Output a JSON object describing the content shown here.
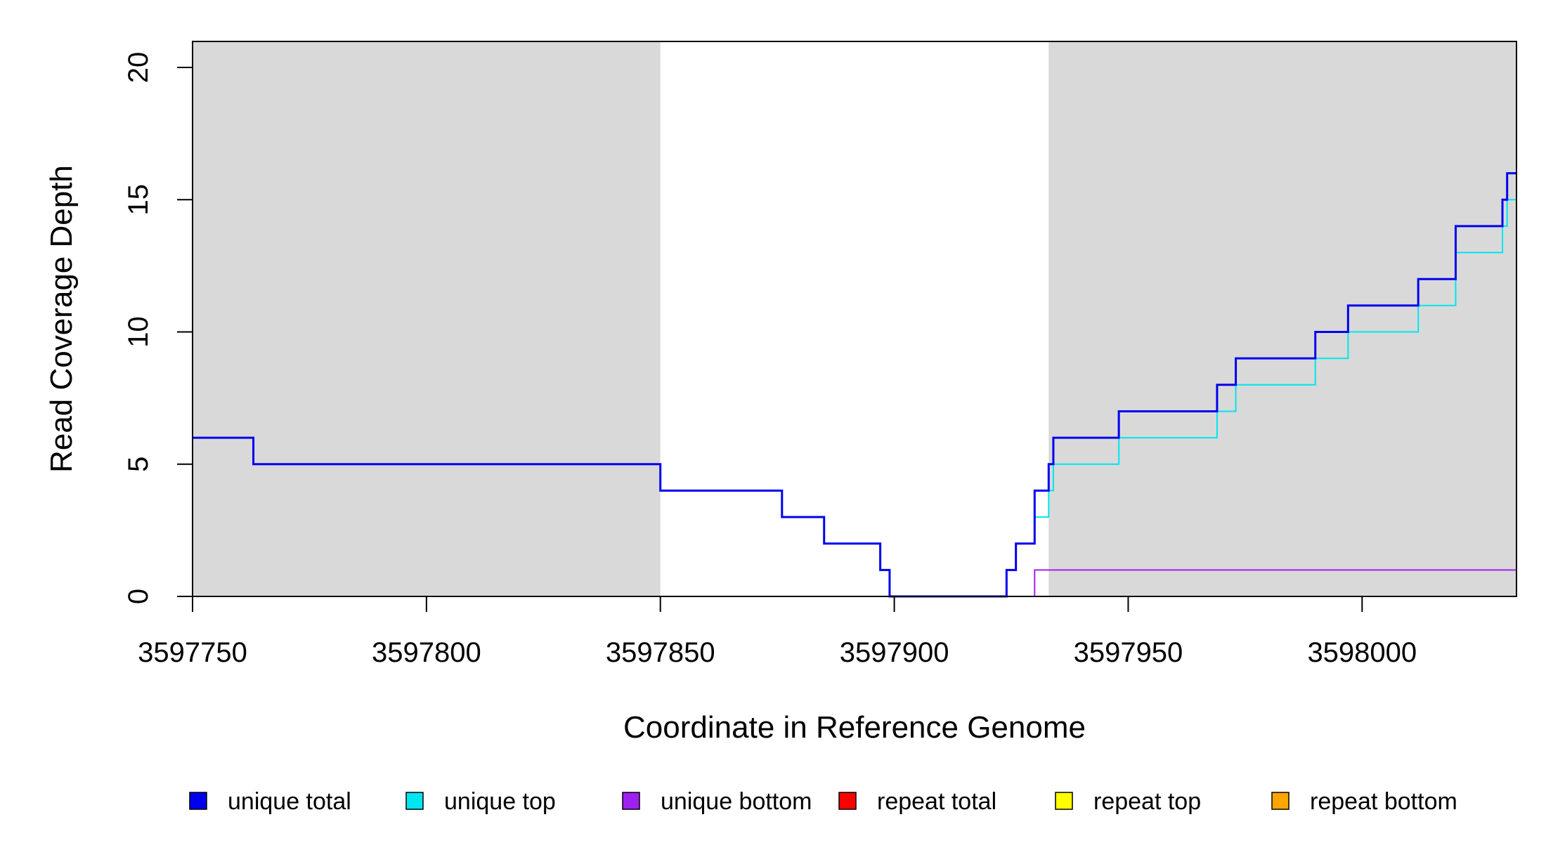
{
  "chart_data": {
    "type": "line",
    "step": true,
    "xlabel": "Coordinate in Reference Genome",
    "ylabel": "Read Coverage Depth",
    "xlim": [
      3597750,
      3598033
    ],
    "ylim": [
      0,
      21
    ],
    "x_ticks": [
      3597750,
      3597800,
      3597850,
      3597900,
      3597950,
      3598000
    ],
    "y_ticks": [
      0,
      5,
      10,
      15,
      20
    ],
    "shaded_regions": [
      {
        "x": [
          3597750,
          3597850
        ],
        "color": "#d9d9d9"
      },
      {
        "x": [
          3597933,
          3598033
        ],
        "color": "#d9d9d9"
      }
    ],
    "legend_placement": "bottom",
    "series": [
      {
        "name": "unique total",
        "color": "#0000ee",
        "points": [
          [
            3597750,
            6
          ],
          [
            3597763,
            5
          ],
          [
            3597850,
            4
          ],
          [
            3597876,
            3
          ],
          [
            3597885,
            2
          ],
          [
            3597897,
            1
          ],
          [
            3597899,
            0
          ],
          [
            3597924,
            1
          ],
          [
            3597926,
            2
          ],
          [
            3597930,
            4
          ],
          [
            3597933,
            5
          ],
          [
            3597934,
            6
          ],
          [
            3597948,
            7
          ],
          [
            3597969,
            8
          ],
          [
            3597973,
            9
          ],
          [
            3597990,
            10
          ],
          [
            3597997,
            11
          ],
          [
            3598012,
            12
          ],
          [
            3598020,
            14
          ],
          [
            3598030,
            15
          ],
          [
            3598031,
            16
          ],
          [
            3598033,
            16
          ]
        ]
      },
      {
        "name": "unique top",
        "color": "#00e5ee",
        "points": [
          [
            3597750,
            0
          ],
          [
            3597924,
            1
          ],
          [
            3597926,
            2
          ],
          [
            3597930,
            3
          ],
          [
            3597933,
            4
          ],
          [
            3597934,
            5
          ],
          [
            3597948,
            6
          ],
          [
            3597969,
            7
          ],
          [
            3597973,
            8
          ],
          [
            3597990,
            9
          ],
          [
            3597997,
            10
          ],
          [
            3598012,
            11
          ],
          [
            3598020,
            13
          ],
          [
            3598030,
            14
          ],
          [
            3598031,
            15
          ],
          [
            3598033,
            15
          ]
        ]
      },
      {
        "name": "unique bottom",
        "color": "#a020f0",
        "points": [
          [
            3597750,
            6
          ],
          [
            3597763,
            5
          ],
          [
            3597850,
            4
          ],
          [
            3597876,
            3
          ],
          [
            3597885,
            2
          ],
          [
            3597897,
            1
          ],
          [
            3597899,
            0
          ],
          [
            3597930,
            1
          ],
          [
            3598033,
            1
          ]
        ]
      },
      {
        "name": "repeat total",
        "color": "#ff0000",
        "points": [
          [
            3597750,
            0
          ],
          [
            3598033,
            0
          ]
        ]
      },
      {
        "name": "repeat top",
        "color": "#ffff00",
        "points": [
          [
            3597750,
            0
          ],
          [
            3598033,
            0
          ]
        ]
      },
      {
        "name": "repeat bottom",
        "color": "#ffa500",
        "points": [
          [
            3597750,
            0
          ],
          [
            3598033,
            0
          ]
        ]
      }
    ]
  }
}
